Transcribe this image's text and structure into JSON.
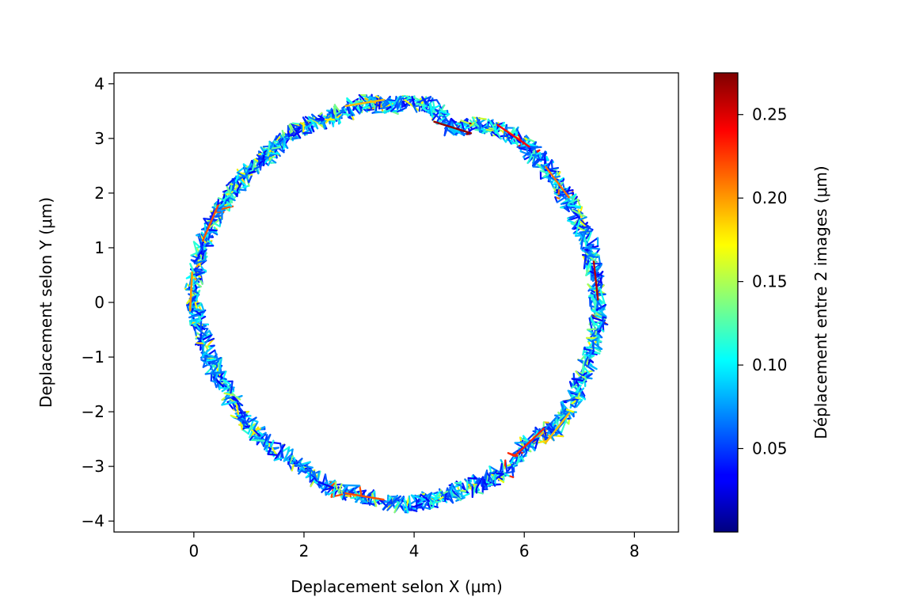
{
  "chart_data": {
    "type": "line",
    "description_series": "trajectory",
    "xlabel": "Deplacement selon X (μm)",
    "ylabel": "Deplacement selon Y (μm)",
    "colorbar_label": "Déplacement entre 2 images (μm)",
    "xlim": [
      -1.45,
      8.8
    ],
    "ylim": [
      -4.2,
      4.2
    ],
    "x_ticks": [
      0,
      2,
      4,
      6,
      8
    ],
    "x_tick_labels": [
      "0",
      "2",
      "4",
      "6",
      "8"
    ],
    "y_ticks": [
      -4,
      -3,
      -2,
      -1,
      0,
      1,
      2,
      3,
      4
    ],
    "y_tick_labels": [
      "−4",
      "−3",
      "−2",
      "−1",
      "0",
      "1",
      "2",
      "3",
      "4"
    ],
    "colorbar_range": [
      0.0,
      0.275
    ],
    "colorbar_ticks": [
      0.05,
      0.1,
      0.15,
      0.2,
      0.25
    ],
    "colorbar_tick_labels": [
      "0.05",
      "0.10",
      "0.15",
      "0.20",
      "0.25"
    ],
    "colormap": "jet",
    "grid": false,
    "trajectory": {
      "center": [
        3.7,
        0.0
      ],
      "radius": 3.65,
      "points": [
        {
          "x": -0.05,
          "y": 0.2,
          "c": 0.2
        },
        {
          "x": 0.1,
          "y": 0.8,
          "c": 0.08
        },
        {
          "x": 0.3,
          "y": 1.45,
          "c": 0.22
        },
        {
          "x": 0.6,
          "y": 1.9,
          "c": 0.12
        },
        {
          "x": 0.9,
          "y": 2.3,
          "c": 0.06
        },
        {
          "x": 1.35,
          "y": 2.7,
          "c": 0.1
        },
        {
          "x": 1.6,
          "y": 3.0,
          "c": 0.18
        },
        {
          "x": 2.1,
          "y": 3.25,
          "c": 0.07
        },
        {
          "x": 2.6,
          "y": 3.45,
          "c": 0.14
        },
        {
          "x": 3.1,
          "y": 3.65,
          "c": 0.19
        },
        {
          "x": 3.6,
          "y": 3.6,
          "c": 0.09
        },
        {
          "x": 4.2,
          "y": 3.65,
          "c": 0.05
        },
        {
          "x": 4.7,
          "y": 3.2,
          "c": 0.27
        },
        {
          "x": 5.3,
          "y": 3.25,
          "c": 0.08
        },
        {
          "x": 5.8,
          "y": 3.05,
          "c": 0.24
        },
        {
          "x": 6.2,
          "y": 2.7,
          "c": 0.17
        },
        {
          "x": 6.6,
          "y": 2.2,
          "c": 0.21
        },
        {
          "x": 6.9,
          "y": 1.7,
          "c": 0.07
        },
        {
          "x": 7.2,
          "y": 1.0,
          "c": 0.12
        },
        {
          "x": 7.3,
          "y": 0.4,
          "c": 0.26
        },
        {
          "x": 7.35,
          "y": -0.3,
          "c": 0.06
        },
        {
          "x": 7.2,
          "y": -1.0,
          "c": 0.11
        },
        {
          "x": 6.95,
          "y": -1.7,
          "c": 0.16
        },
        {
          "x": 6.6,
          "y": -2.3,
          "c": 0.19
        },
        {
          "x": 6.1,
          "y": -2.55,
          "c": 0.23
        },
        {
          "x": 5.6,
          "y": -3.1,
          "c": 0.09
        },
        {
          "x": 5.0,
          "y": -3.4,
          "c": 0.06
        },
        {
          "x": 4.4,
          "y": -3.6,
          "c": 0.12
        },
        {
          "x": 3.8,
          "y": -3.7,
          "c": 0.05
        },
        {
          "x": 3.1,
          "y": -3.55,
          "c": 0.22
        },
        {
          "x": 2.5,
          "y": -3.4,
          "c": 0.08
        },
        {
          "x": 1.9,
          "y": -3.0,
          "c": 0.14
        },
        {
          "x": 1.3,
          "y": -2.6,
          "c": 0.07
        },
        {
          "x": 0.9,
          "y": -2.1,
          "c": 0.1
        },
        {
          "x": 0.5,
          "y": -1.5,
          "c": 0.06
        },
        {
          "x": 0.3,
          "y": -1.0,
          "c": 0.18
        },
        {
          "x": 0.1,
          "y": -0.4,
          "c": 0.09
        },
        {
          "x": -0.05,
          "y": 0.2,
          "c": 0.2
        }
      ]
    }
  }
}
